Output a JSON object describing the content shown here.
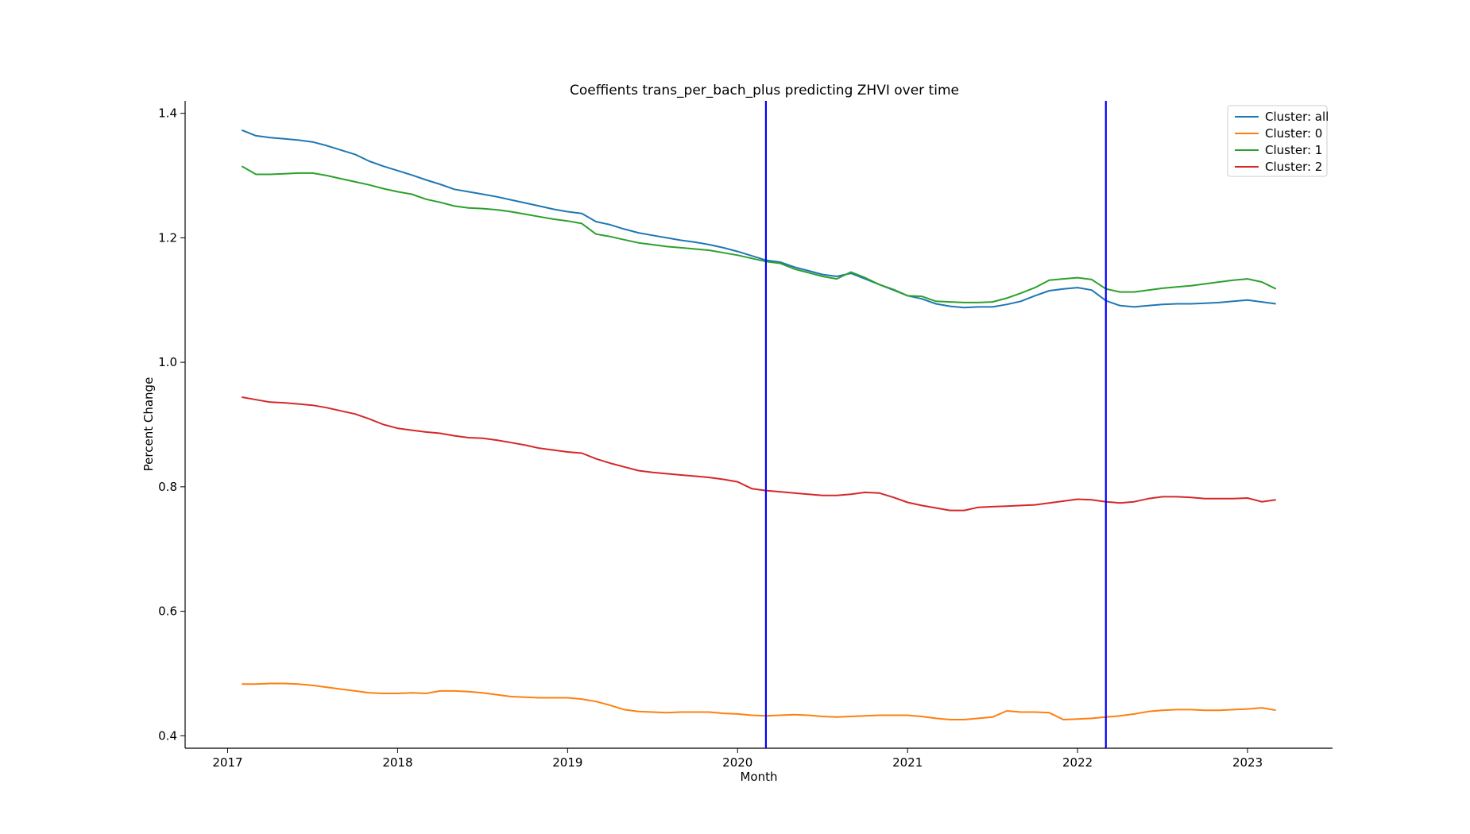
{
  "chart_data": {
    "type": "line",
    "title": "Coeffients trans_per_bach_plus predicting ZHVI over time",
    "xlabel": "Month",
    "ylabel": "Percent Change",
    "x_ticks": [
      "2017",
      "2018",
      "2019",
      "2020",
      "2021",
      "2022",
      "2023"
    ],
    "y_ticks": [
      "0.4",
      "0.6",
      "0.8",
      "1.0",
      "1.2",
      "1.4"
    ],
    "xlim": [
      "2016-10",
      "2023-07"
    ],
    "ylim": [
      0.38,
      1.42
    ],
    "grid": false,
    "legend_position": "top-right",
    "x": [
      "2017-02",
      "2017-03",
      "2017-04",
      "2017-05",
      "2017-06",
      "2017-07",
      "2017-08",
      "2017-09",
      "2017-10",
      "2017-11",
      "2017-12",
      "2018-01",
      "2018-02",
      "2018-03",
      "2018-04",
      "2018-05",
      "2018-06",
      "2018-07",
      "2018-08",
      "2018-09",
      "2018-10",
      "2018-11",
      "2018-12",
      "2019-01",
      "2019-02",
      "2019-03",
      "2019-04",
      "2019-05",
      "2019-06",
      "2019-07",
      "2019-08",
      "2019-09",
      "2019-10",
      "2019-11",
      "2019-12",
      "2020-01",
      "2020-02",
      "2020-03",
      "2020-04",
      "2020-05",
      "2020-06",
      "2020-07",
      "2020-08",
      "2020-09",
      "2020-10",
      "2020-11",
      "2020-12",
      "2021-01",
      "2021-02",
      "2021-03",
      "2021-04",
      "2021-05",
      "2021-06",
      "2021-07",
      "2021-08",
      "2021-09",
      "2021-10",
      "2021-11",
      "2021-12",
      "2022-01",
      "2022-02",
      "2022-03",
      "2022-04",
      "2022-05",
      "2022-06",
      "2022-07",
      "2022-08",
      "2022-09",
      "2022-10",
      "2022-11",
      "2022-12",
      "2023-01",
      "2023-02",
      "2023-03"
    ],
    "series": [
      {
        "name": "Cluster: all",
        "color": "#1f77b4",
        "values": [
          1.373,
          1.364,
          1.361,
          1.359,
          1.357,
          1.354,
          1.348,
          1.341,
          1.334,
          1.323,
          1.315,
          1.308,
          1.301,
          1.293,
          1.286,
          1.278,
          1.274,
          1.27,
          1.266,
          1.261,
          1.256,
          1.251,
          1.246,
          1.242,
          1.239,
          1.226,
          1.221,
          1.214,
          1.208,
          1.204,
          1.2,
          1.196,
          1.193,
          1.189,
          1.184,
          1.178,
          1.171,
          1.164,
          1.161,
          1.153,
          1.147,
          1.141,
          1.138,
          1.143,
          1.134,
          1.125,
          1.116,
          1.107,
          1.102,
          1.094,
          1.09,
          1.088,
          1.089,
          1.089,
          1.093,
          1.098,
          1.107,
          1.115,
          1.118,
          1.12,
          1.116,
          1.099,
          1.091,
          1.089,
          1.091,
          1.093,
          1.094,
          1.094,
          1.095,
          1.096,
          1.098,
          1.1,
          1.097,
          1.094
        ]
      },
      {
        "name": "Cluster: 0",
        "color": "#ff7f0e",
        "values": [
          0.483,
          0.483,
          0.484,
          0.484,
          0.483,
          0.481,
          0.478,
          0.475,
          0.472,
          0.469,
          0.468,
          0.468,
          0.469,
          0.468,
          0.472,
          0.472,
          0.471,
          0.469,
          0.466,
          0.463,
          0.462,
          0.461,
          0.461,
          0.461,
          0.459,
          0.455,
          0.449,
          0.442,
          0.439,
          0.438,
          0.437,
          0.438,
          0.438,
          0.438,
          0.436,
          0.435,
          0.433,
          0.432,
          0.433,
          0.434,
          0.433,
          0.431,
          0.43,
          0.431,
          0.432,
          0.433,
          0.433,
          0.433,
          0.431,
          0.428,
          0.426,
          0.426,
          0.428,
          0.43,
          0.44,
          0.438,
          0.438,
          0.437,
          0.426,
          0.427,
          0.428,
          0.43,
          0.432,
          0.435,
          0.439,
          0.441,
          0.442,
          0.442,
          0.441,
          0.441,
          0.442,
          0.443,
          0.445,
          0.441
        ]
      },
      {
        "name": "Cluster: 1",
        "color": "#2ca02c",
        "values": [
          1.315,
          1.302,
          1.302,
          1.303,
          1.304,
          1.304,
          1.3,
          1.295,
          1.29,
          1.285,
          1.279,
          1.274,
          1.27,
          1.262,
          1.257,
          1.251,
          1.248,
          1.247,
          1.245,
          1.242,
          1.238,
          1.234,
          1.23,
          1.227,
          1.223,
          1.206,
          1.202,
          1.197,
          1.192,
          1.189,
          1.186,
          1.184,
          1.182,
          1.18,
          1.176,
          1.172,
          1.167,
          1.162,
          1.159,
          1.15,
          1.144,
          1.138,
          1.134,
          1.145,
          1.136,
          1.125,
          1.117,
          1.107,
          1.106,
          1.098,
          1.097,
          1.096,
          1.096,
          1.097,
          1.103,
          1.111,
          1.12,
          1.132,
          1.134,
          1.136,
          1.133,
          1.118,
          1.113,
          1.113,
          1.116,
          1.119,
          1.121,
          1.123,
          1.126,
          1.129,
          1.132,
          1.134,
          1.129,
          1.118
        ]
      },
      {
        "name": "Cluster: 2",
        "color": "#d62728",
        "values": [
          0.944,
          0.94,
          0.936,
          0.935,
          0.933,
          0.931,
          0.927,
          0.922,
          0.917,
          0.909,
          0.9,
          0.894,
          0.891,
          0.888,
          0.886,
          0.882,
          0.879,
          0.878,
          0.875,
          0.871,
          0.867,
          0.862,
          0.859,
          0.856,
          0.854,
          0.845,
          0.838,
          0.832,
          0.826,
          0.823,
          0.821,
          0.819,
          0.817,
          0.815,
          0.812,
          0.808,
          0.797,
          0.794,
          0.792,
          0.79,
          0.788,
          0.786,
          0.786,
          0.788,
          0.791,
          0.79,
          0.783,
          0.775,
          0.77,
          0.766,
          0.762,
          0.762,
          0.767,
          0.768,
          0.769,
          0.77,
          0.771,
          0.774,
          0.777,
          0.78,
          0.779,
          0.776,
          0.774,
          0.776,
          0.781,
          0.784,
          0.784,
          0.783,
          0.781,
          0.781,
          0.781,
          0.782,
          0.776,
          0.779
        ]
      }
    ],
    "vlines": [
      {
        "x": "2020-03",
        "color": "#0000ff"
      },
      {
        "x": "2022-03",
        "color": "#0000ff"
      }
    ]
  }
}
